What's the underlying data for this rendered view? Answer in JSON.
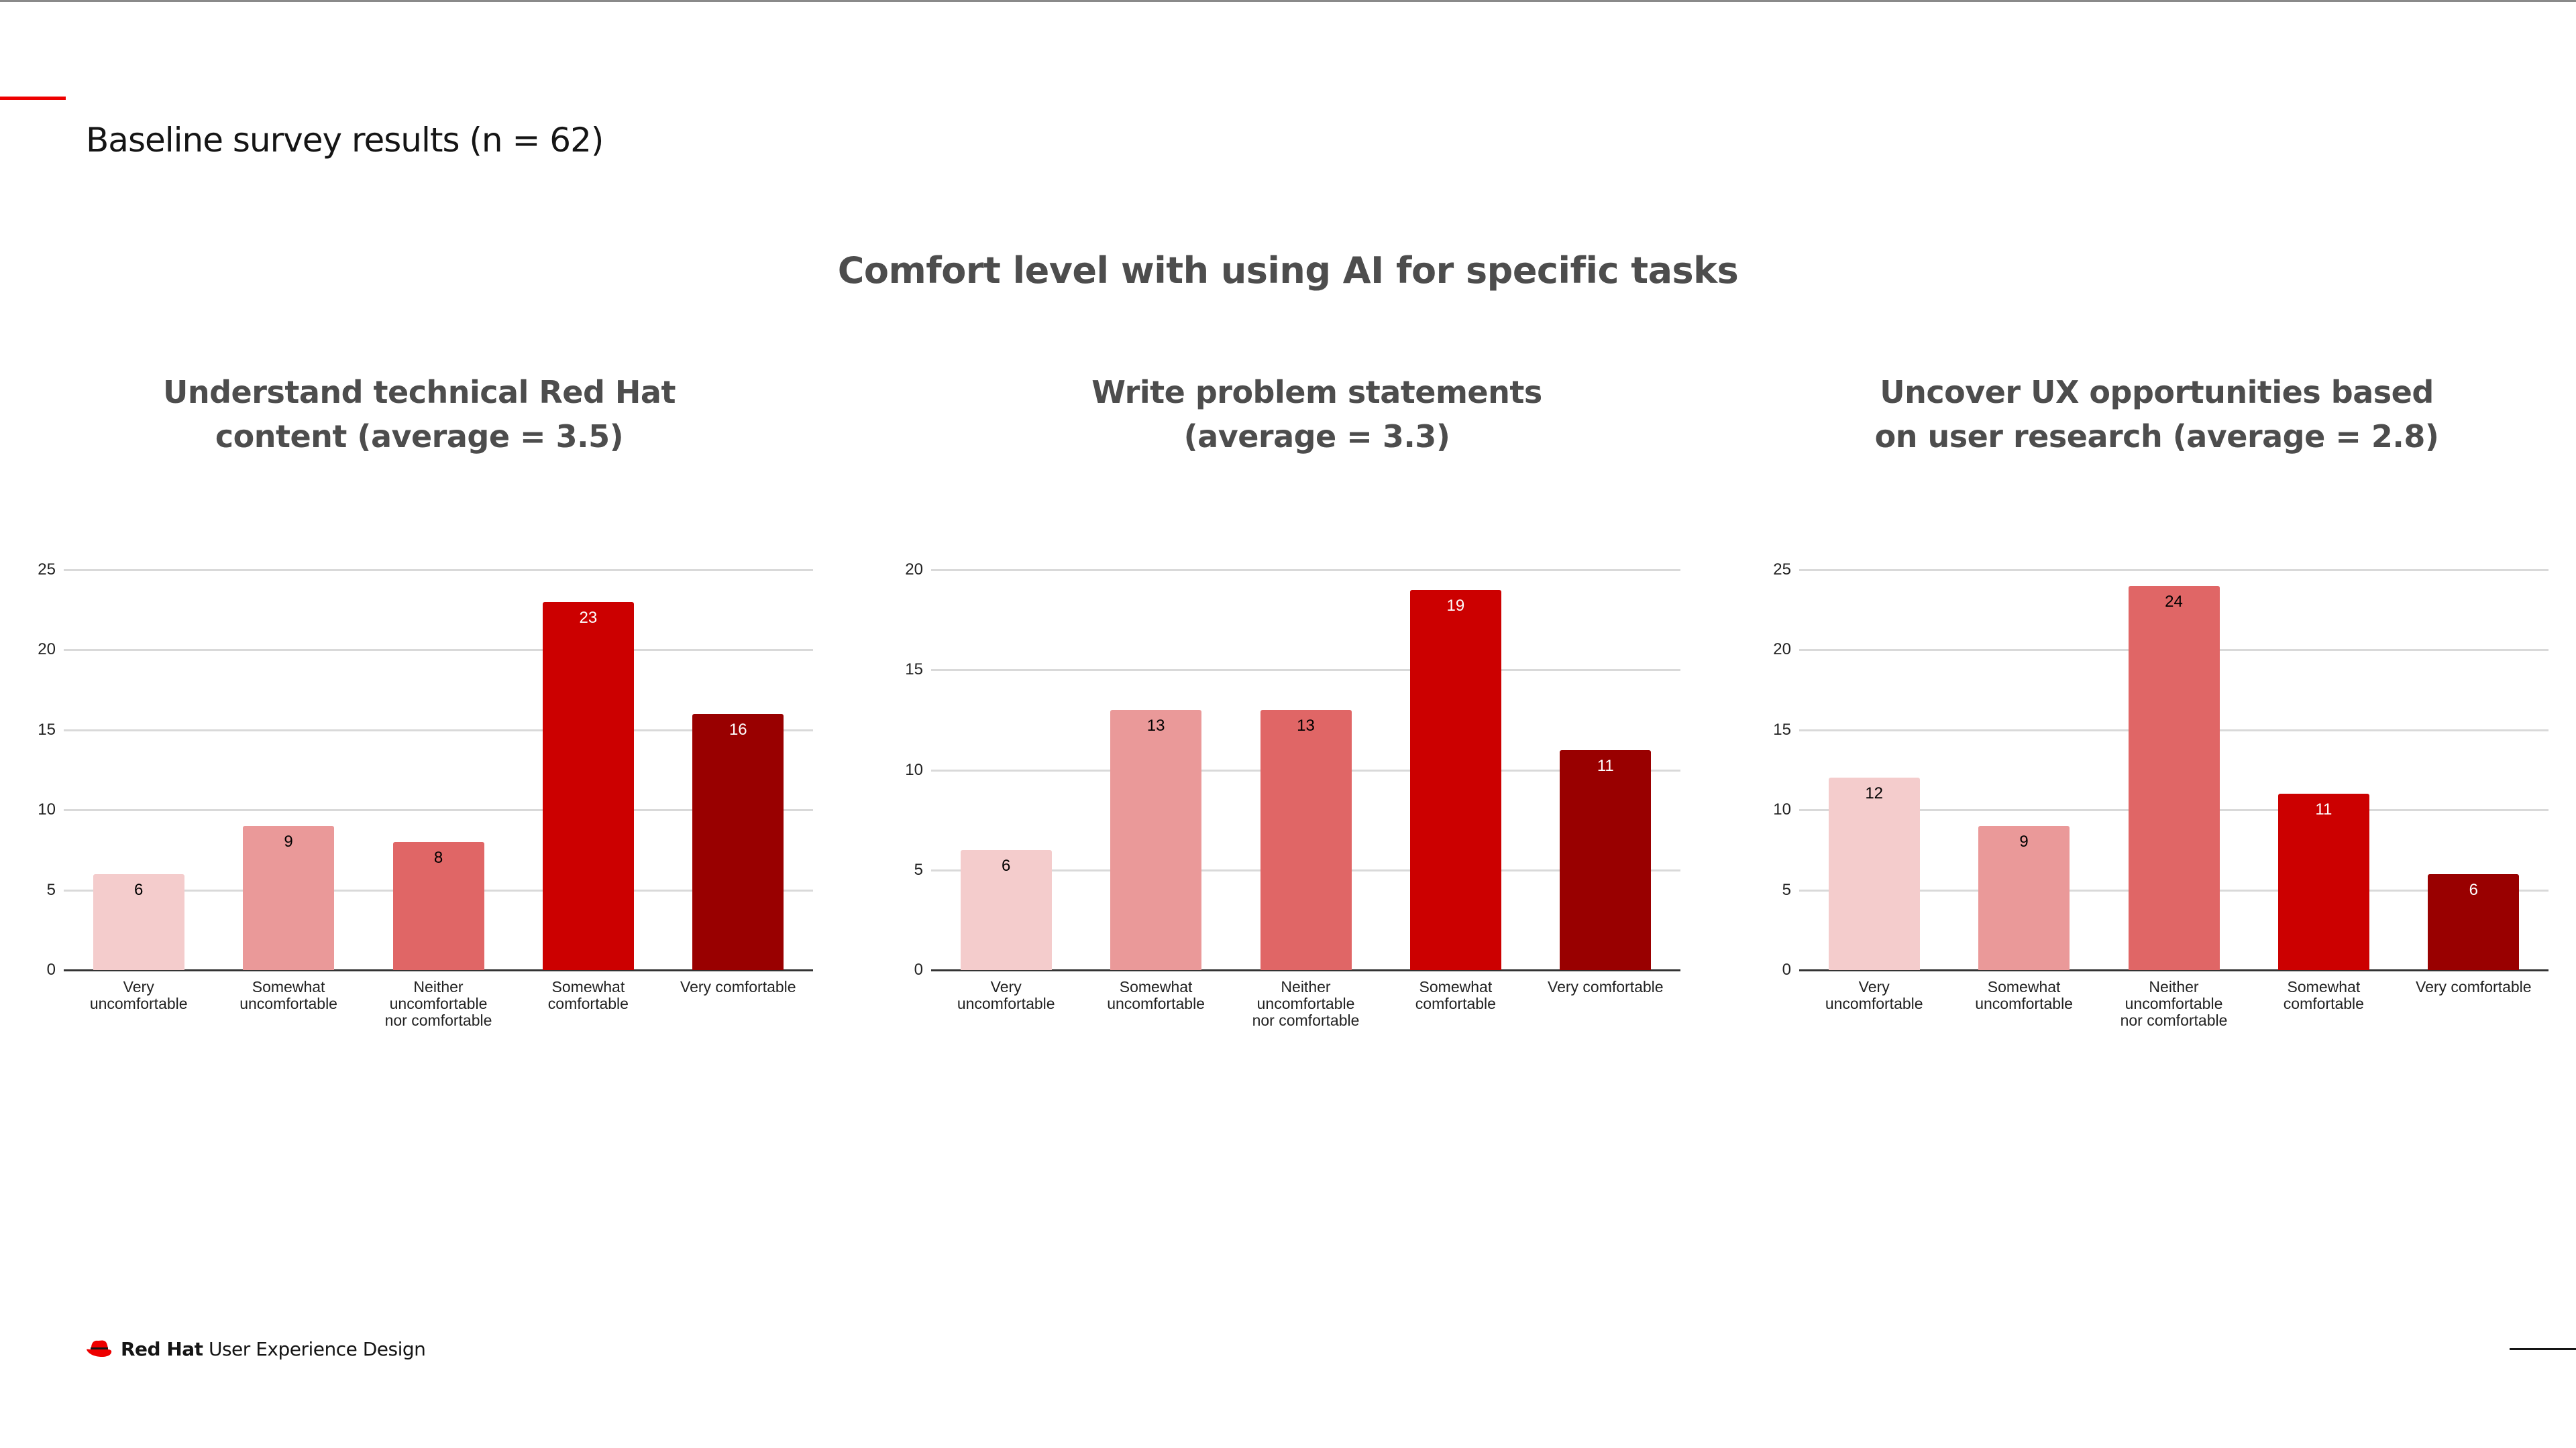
{
  "slide": {
    "title": "Baseline survey results (n = 62)",
    "heading": "Comfort level with using AI for specific tasks"
  },
  "footer": {
    "brand": "Red Hat",
    "text": "User Experience Design",
    "logo_icon": "red-hat-fedora-icon"
  },
  "colors": {
    "accent": "#ee0000",
    "very_uncomfortable": "#f4cccc",
    "somewhat_uncomfortable": "#ea9999",
    "neither": "#e06666",
    "somewhat_comfortable": "#cc0000",
    "very_comfortable": "#990000"
  },
  "chart_data": [
    {
      "type": "bar",
      "title": "Understand technical Red Hat content (average = 3.5)",
      "title_lines": [
        "Understand technical Red Hat",
        "content (average = 3.5)"
      ],
      "categories": [
        "Very uncomfortable",
        "Somewhat uncomfortable",
        "Neither uncomfortable nor comfortable",
        "Somewhat comfortable",
        "Very comfortable"
      ],
      "category_lines": [
        "Very\nuncomfortable",
        "Somewhat\nuncomfortable",
        "Neither\nuncomfortable\nnor comfortable",
        "Somewhat\ncomfortable",
        "Very comfortable"
      ],
      "values": [
        6,
        9,
        8,
        23,
        16
      ],
      "colors": [
        "#f4cccc",
        "#ea9999",
        "#e06666",
        "#cc0000",
        "#990000"
      ],
      "label_colors": [
        "#000000",
        "#000000",
        "#000000",
        "#ffffff",
        "#ffffff"
      ],
      "xlabel": "",
      "ylabel": "",
      "ylim": [
        0,
        25
      ],
      "yticks": [
        0,
        5,
        10,
        15,
        20,
        25
      ],
      "grid": true,
      "legend": "none"
    },
    {
      "type": "bar",
      "title": "Write problem statements (average = 3.3)",
      "title_lines": [
        "Write problem statements",
        "(average = 3.3)"
      ],
      "categories": [
        "Very uncomfortable",
        "Somewhat uncomfortable",
        "Neither uncomfortable nor comfortable",
        "Somewhat comfortable",
        "Very comfortable"
      ],
      "category_lines": [
        "Very\nuncomfortable",
        "Somewhat\nuncomfortable",
        "Neither\nuncomfortable\nnor comfortable",
        "Somewhat\ncomfortable",
        "Very comfortable"
      ],
      "values": [
        6,
        13,
        13,
        19,
        11
      ],
      "colors": [
        "#f4cccc",
        "#ea9999",
        "#e06666",
        "#cc0000",
        "#990000"
      ],
      "label_colors": [
        "#000000",
        "#000000",
        "#000000",
        "#ffffff",
        "#ffffff"
      ],
      "xlabel": "",
      "ylabel": "",
      "ylim": [
        0,
        20
      ],
      "yticks": [
        0,
        5,
        10,
        15,
        20
      ],
      "grid": true,
      "legend": "none"
    },
    {
      "type": "bar",
      "title": "Uncover UX opportunities based on user research (average = 2.8)",
      "title_lines": [
        "Uncover UX opportunities based",
        "on user research (average = 2.8)"
      ],
      "categories": [
        "Very uncomfortable",
        "Somewhat uncomfortable",
        "Neither uncomfortable nor comfortable",
        "Somewhat comfortable",
        "Very comfortable"
      ],
      "category_lines": [
        "Very\nuncomfortable",
        "Somewhat\nuncomfortable",
        "Neither\nuncomfortable\nnor comfortable",
        "Somewhat\ncomfortable",
        "Very comfortable"
      ],
      "values": [
        12,
        9,
        24,
        11,
        6
      ],
      "colors": [
        "#f4cccc",
        "#ea9999",
        "#e06666",
        "#cc0000",
        "#990000"
      ],
      "label_colors": [
        "#000000",
        "#000000",
        "#000000",
        "#ffffff",
        "#ffffff"
      ],
      "xlabel": "",
      "ylabel": "",
      "ylim": [
        0,
        25
      ],
      "yticks": [
        0,
        5,
        10,
        15,
        20,
        25
      ],
      "grid": true,
      "legend": "none"
    }
  ]
}
